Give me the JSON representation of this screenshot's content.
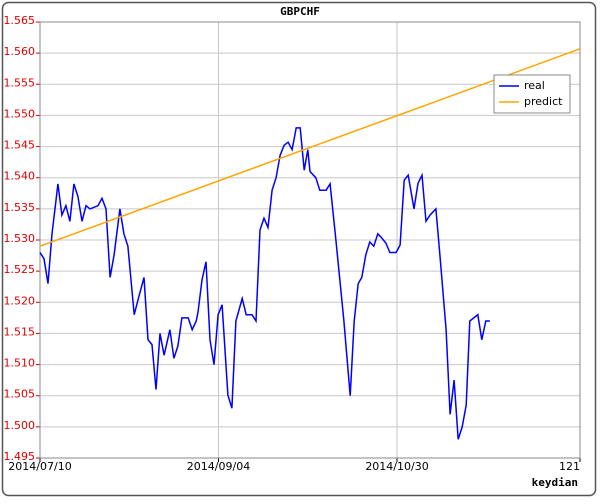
{
  "chart_data": {
    "type": "line",
    "title": "GBPCHF",
    "xlabel": "keydian",
    "xlim": [
      0,
      121
    ],
    "xticks": [
      {
        "value": 0,
        "label": "2014/07/10"
      },
      {
        "value": 40,
        "label": "2014/09/04"
      },
      {
        "value": 80,
        "label": "2014/10/30"
      },
      121
    ],
    "ylim": [
      1.495,
      1.565
    ],
    "yticks": [
      1.495,
      {
        "value": 1.5,
        "label": "1.500"
      },
      1.505,
      {
        "value": 1.51,
        "label": "1.510"
      },
      1.515,
      {
        "value": 1.52,
        "label": "1.520"
      },
      1.525,
      {
        "value": 1.53,
        "label": "1.530"
      },
      1.535,
      {
        "value": 1.54,
        "label": "1.540"
      },
      1.545,
      {
        "value": 1.55,
        "label": "1.550"
      },
      1.555,
      {
        "value": 1.56,
        "label": "1.560"
      },
      1.565
    ],
    "grid": true,
    "legend": "upper right",
    "series": [
      {
        "name": "real",
        "color": "#0000ff",
        "x": [
          0,
          0.9,
          1.8,
          2.7,
          3.6,
          4.0,
          4.9,
          5.8,
          6.7,
          7.6,
          8.5,
          9.4,
          10.3,
          11.2,
          13.0,
          13.9,
          14.8,
          15.7,
          16.6,
          17.9,
          18.8,
          19.7,
          21.1,
          22.0,
          23.3,
          24.2,
          25.1,
          26.0,
          26.9,
          27.8,
          29.1,
          30.0,
          30.9,
          31.8,
          33.2,
          34.1,
          35.0,
          35.4,
          36.3,
          37.2,
          38.1,
          39.0,
          39.9,
          40.8,
          42.1,
          43.0,
          43.9,
          45.3,
          46.2,
          47.5,
          48.4,
          49.3,
          50.2,
          51.1,
          52.0,
          52.9,
          53.8,
          54.7,
          55.6,
          56.5,
          57.4,
          58.3,
          59.2,
          60.0,
          60.5,
          61.8,
          62.7,
          64.1,
          65.0,
          66.3,
          68.1,
          69.5,
          70.4,
          71.3,
          72.1,
          73.0,
          73.9,
          74.8,
          75.7,
          76.6,
          77.5,
          78.4,
          79.8,
          80.7,
          81.6,
          82.5,
          83.8,
          84.7,
          85.6,
          86.5,
          87.4,
          88.7,
          89.6,
          91.0,
          91.9,
          92.8,
          93.7,
          94.6,
          95.5,
          96.3,
          97.2,
          98.1,
          99.0,
          99.9,
          100.8
        ],
        "values": [
          1.528,
          1.527,
          1.523,
          1.531,
          1.5365,
          1.539,
          1.534,
          1.5355,
          1.533,
          1.539,
          1.537,
          1.533,
          1.5355,
          1.535,
          1.5355,
          1.5367,
          1.535,
          1.524,
          1.5276,
          1.535,
          1.531,
          1.529,
          1.518,
          1.5205,
          1.524,
          1.514,
          1.5132,
          1.506,
          1.515,
          1.5115,
          1.5156,
          1.511,
          1.513,
          1.5175,
          1.5175,
          1.5156,
          1.517,
          1.5184,
          1.5236,
          1.5265,
          1.514,
          1.51,
          1.518,
          1.5196,
          1.5051,
          1.503,
          1.517,
          1.5206,
          1.518,
          1.518,
          1.517,
          1.5316,
          1.5335,
          1.532,
          1.538,
          1.54,
          1.5436,
          1.5452,
          1.5457,
          1.5445,
          1.548,
          1.548,
          1.5412,
          1.5445,
          1.541,
          1.54,
          1.538,
          1.538,
          1.539,
          1.53,
          1.517,
          1.505,
          1.517,
          1.523,
          1.524,
          1.5276,
          1.5297,
          1.529,
          1.531,
          1.5303,
          1.5295,
          1.528,
          1.528,
          1.5292,
          1.5396,
          1.5404,
          1.535,
          1.5391,
          1.5404,
          1.533,
          1.534,
          1.535,
          1.5276,
          1.5156,
          1.502,
          1.5075,
          1.498,
          1.5,
          1.5035,
          1.517,
          1.5175,
          1.518,
          1.514,
          1.517,
          1.517
        ]
      },
      {
        "name": "predict",
        "color": "#ffa500",
        "x": [
          0,
          121
        ],
        "values": [
          1.529,
          1.5607
        ]
      }
    ]
  }
}
